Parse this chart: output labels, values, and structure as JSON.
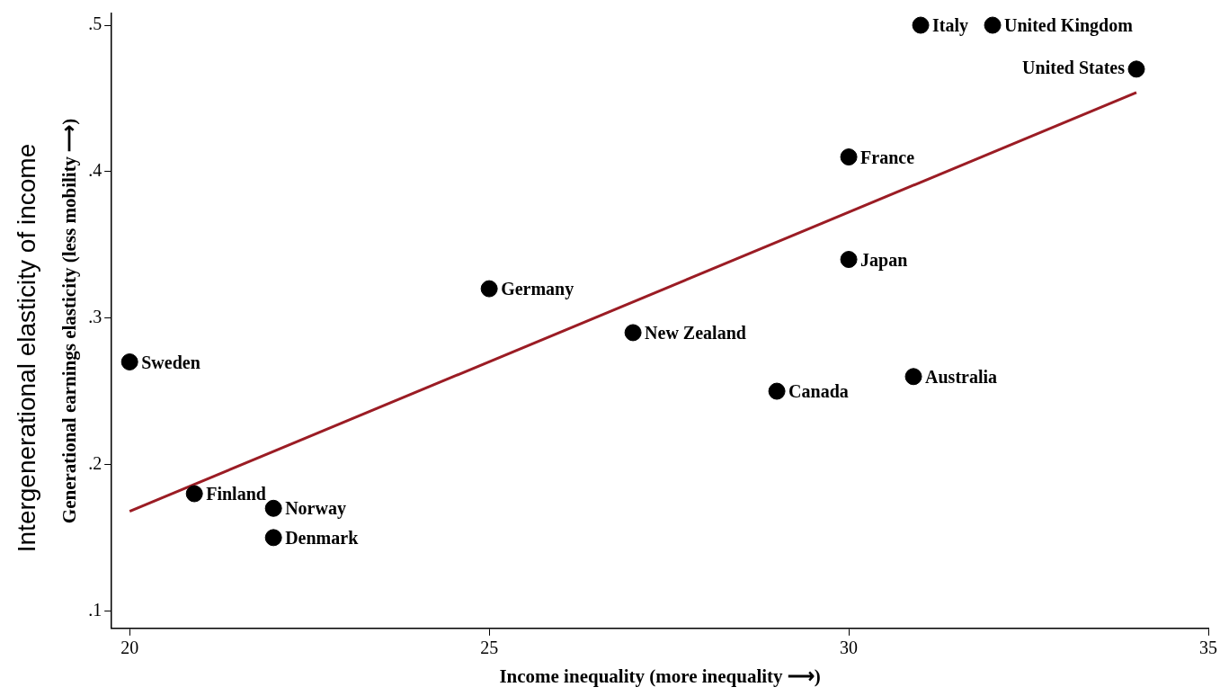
{
  "chart_data": {
    "type": "scatter",
    "xlabel": "Income inequality (more inequality ⟶)",
    "ylabel": "Generational earnings elasticity (less mobility ⟶)",
    "xlim": [
      19.75,
      35
    ],
    "xticks": [
      20,
      25,
      30,
      35
    ],
    "ylim": [
      0.088,
      0.508
    ],
    "yticks": [
      {
        "value": 0.1,
        "label": ".1"
      },
      {
        "value": 0.2,
        "label": ".2"
      },
      {
        "value": 0.3,
        "label": ".3"
      },
      {
        "value": 0.4,
        "label": ".4"
      },
      {
        "value": 0.5,
        "label": ".5"
      }
    ],
    "grid": false,
    "legend": false,
    "marker": "circle",
    "series": [
      {
        "type": "scatter",
        "color": "#000000",
        "x": [
          20,
          20.9,
          22,
          22,
          25,
          27,
          29,
          30,
          30,
          30.9,
          31,
          32,
          34
        ],
        "values": [
          0.27,
          0.18,
          0.17,
          0.15,
          0.32,
          0.29,
          0.25,
          0.34,
          0.41,
          0.26,
          0.5,
          0.5,
          0.47
        ]
      },
      {
        "type": "line",
        "marker": "none",
        "color": "#9b1c24",
        "x": [
          20,
          34
        ],
        "values": [
          0.168,
          0.454
        ]
      }
    ],
    "annotations": [
      "Intergenerational elasticity of  income",
      {
        "text": "Sweden",
        "x": 20,
        "y": 0.27
      },
      {
        "text": "Finland",
        "x": 20.9,
        "y": 0.18
      },
      {
        "text": "Norway",
        "x": 22,
        "y": 0.17
      },
      {
        "text": "Denmark",
        "x": 22,
        "y": 0.15
      },
      {
        "text": "Germany",
        "x": 25,
        "y": 0.32
      },
      {
        "text": "New Zealand",
        "x": 27,
        "y": 0.29
      },
      {
        "text": "Canada",
        "x": 29,
        "y": 0.25
      },
      {
        "text": "Japan",
        "x": 30,
        "y": 0.34
      },
      {
        "text": "France",
        "x": 30,
        "y": 0.41
      },
      {
        "text": "Australia",
        "x": 30.9,
        "y": 0.26
      },
      {
        "text": "Italy",
        "x": 31,
        "y": 0.5
      },
      {
        "text": "United Kingdom",
        "x": 32,
        "y": 0.5
      },
      {
        "text": "United States",
        "x": 34,
        "y": 0.47
      }
    ]
  }
}
